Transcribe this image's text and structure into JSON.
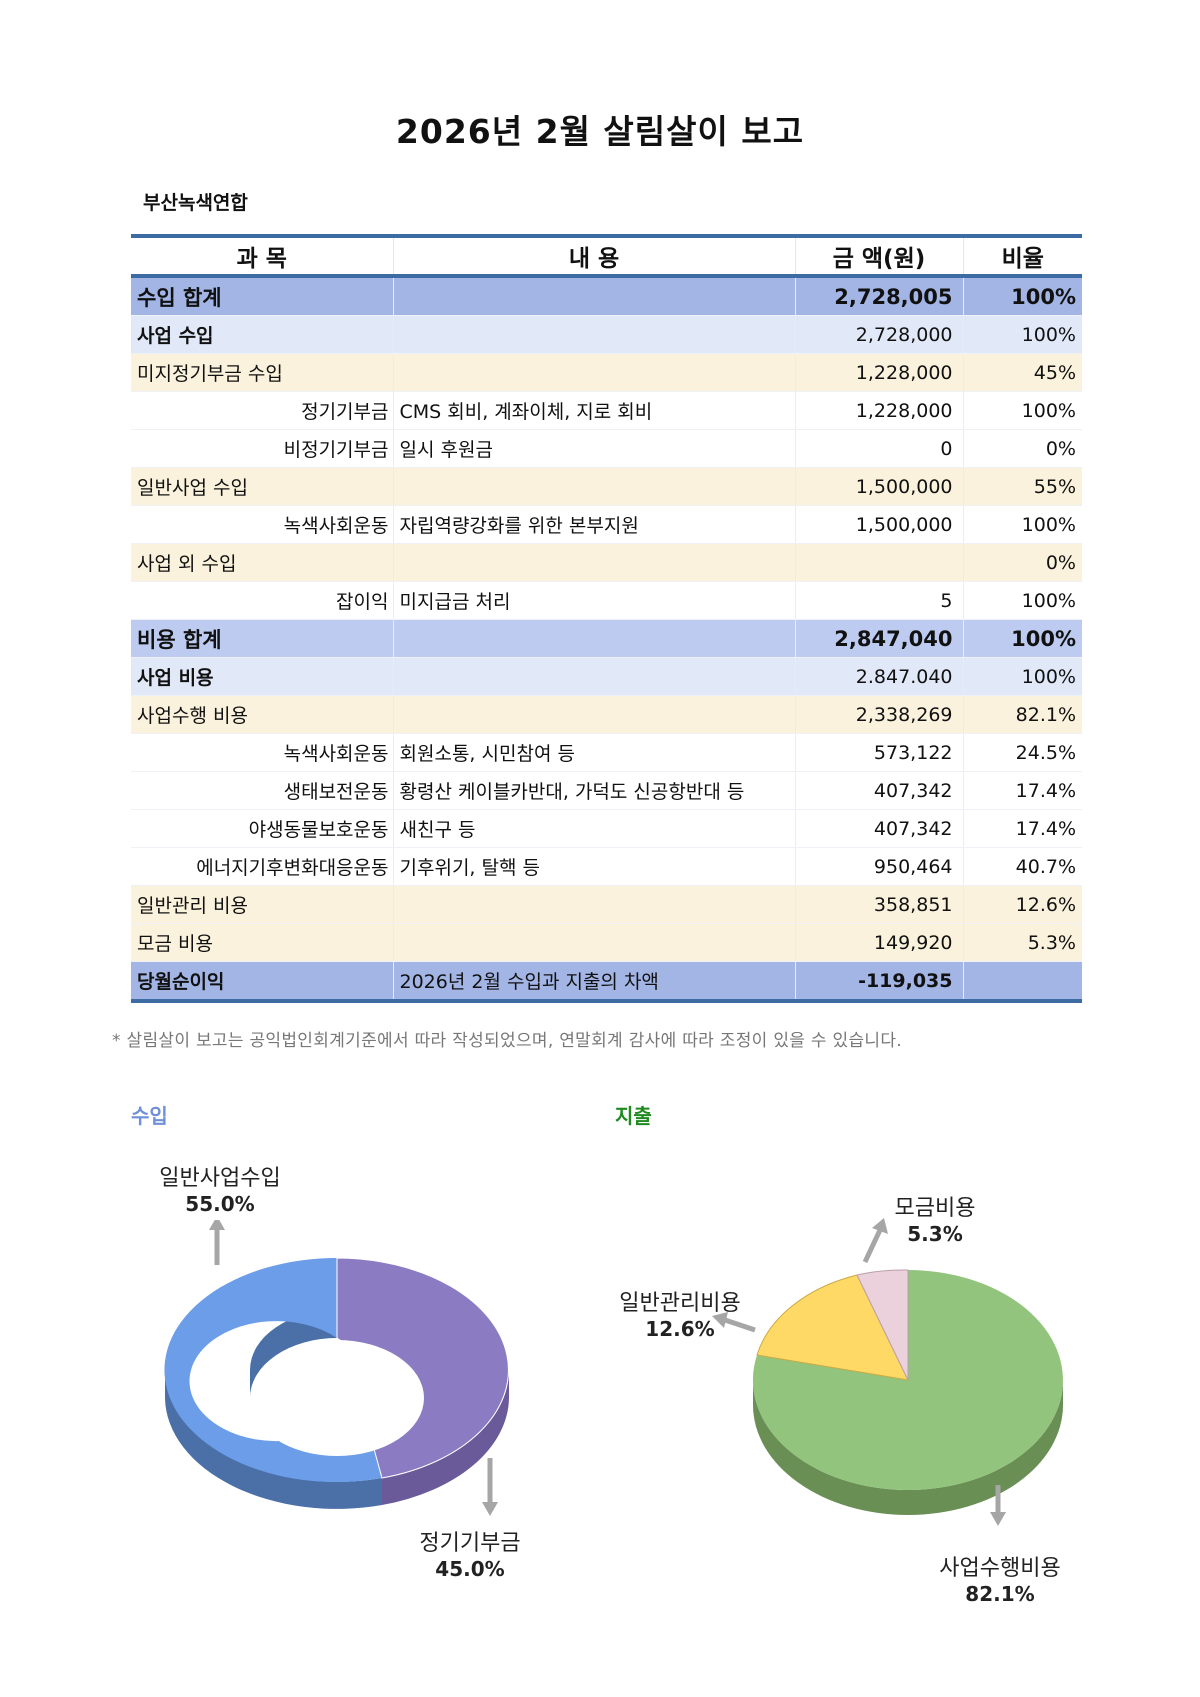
{
  "title": "2026년 2월 살림살이 보고",
  "organization": "부산녹색연합",
  "table": {
    "headers": [
      "과 목",
      "내 용",
      "금 액(원)",
      "비율"
    ],
    "rows": [
      {
        "type": "total",
        "subject": "수입 합계",
        "content": "",
        "amount": "2,728,005",
        "ratio": "100%"
      },
      {
        "type": "sub",
        "subject": "사업 수입",
        "content": "",
        "amount": "2,728,000",
        "ratio": "100%"
      },
      {
        "type": "cat",
        "subject": "미지정기부금 수입",
        "content": "",
        "amount": "1,228,000",
        "ratio": "45%"
      },
      {
        "type": "item",
        "subject": "정기기부금",
        "content": "CMS 회비, 계좌이체, 지로 회비",
        "amount": "1,228,000",
        "ratio": "100%"
      },
      {
        "type": "item",
        "subject": "비정기기부금",
        "content": "일시 후원금",
        "amount": "0",
        "ratio": "0%"
      },
      {
        "type": "cat",
        "subject": "일반사업 수입",
        "content": "",
        "amount": "1,500,000",
        "ratio": "55%"
      },
      {
        "type": "item",
        "subject": "녹색사회운동",
        "content": "자립역량강화를 위한 본부지원",
        "amount": "1,500,000",
        "ratio": "100%"
      },
      {
        "type": "cat",
        "subject": "사업 외 수입",
        "content": "",
        "amount": "",
        "ratio": "0%"
      },
      {
        "type": "item",
        "subject": "잡이익",
        "content": "미지급금 처리",
        "amount": "5",
        "ratio": "100%"
      },
      {
        "type": "total2",
        "subject": "비용 합계",
        "content": "",
        "amount": "2,847,040",
        "ratio": "100%"
      },
      {
        "type": "sub",
        "subject": "사업 비용",
        "content": "",
        "amount": "2.847.040",
        "ratio": "100%"
      },
      {
        "type": "cat",
        "subject": "사업수행 비용",
        "content": "",
        "amount": "2,338,269",
        "ratio": "82.1%"
      },
      {
        "type": "item",
        "subject": "녹색사회운동",
        "content": "회원소통, 시민참여 등",
        "amount": "573,122",
        "ratio": "24.5%"
      },
      {
        "type": "item",
        "subject": "생태보전운동",
        "content": "황령산 케이블카반대, 가덕도 신공항반대 등",
        "amount": "407,342",
        "ratio": "17.4%"
      },
      {
        "type": "item",
        "subject": "야생동물보호운동",
        "content": "새친구 등",
        "amount": "407,342",
        "ratio": "17.4%"
      },
      {
        "type": "item",
        "subject": "에너지기후변화대응운동",
        "content": "기후위기, 탈핵 등",
        "amount": "950,464",
        "ratio": "40.7%"
      },
      {
        "type": "cat",
        "subject": "일반관리 비용",
        "content": "",
        "amount": "358,851",
        "ratio": "12.6%"
      },
      {
        "type": "cat",
        "subject": "모금 비용",
        "content": "",
        "amount": "149,920",
        "ratio": "5.3%"
      },
      {
        "type": "net",
        "subject": "당월순이익",
        "content": "2026년 2월 수입과 지출의 차액",
        "amount": "-119,035",
        "ratio": ""
      }
    ]
  },
  "note": "* 살림살이 보고는 공익법인회계기준에서 따라 작성되었으며, 연말회계 감사에 따라 조정이 있을 수 있습니다.",
  "charts": {
    "income_title": "수입",
    "expense_title": "지출",
    "income_labels": [
      {
        "name": "일반사업수입",
        "pct": "55.0%"
      },
      {
        "name": "정기기부금",
        "pct": "45.0%"
      }
    ],
    "expense_labels": [
      {
        "name": "모금비용",
        "pct": "5.3%"
      },
      {
        "name": "일반관리비용",
        "pct": "12.6%"
      },
      {
        "name": "사업수행비용",
        "pct": "82.1%"
      }
    ]
  },
  "colors": {
    "header_border": "#3d6ba3",
    "total_row": "#a2b5e5",
    "sub_row": "#e1e8f7",
    "category_row": "#faf2dc",
    "income_title": "#6f8fd8",
    "expense_title": "#1f8a1f",
    "donut_blue": "#6c9de8",
    "donut_purple": "#8b7bc2",
    "pie_green": "#93c47d",
    "pie_yellow": "#ffd966",
    "pie_pink": "#ead1dc"
  },
  "chart_data": [
    {
      "type": "pie",
      "title": "수입",
      "style": "3d-donut",
      "categories": [
        "일반사업수입",
        "정기기부금"
      ],
      "values": [
        55.0,
        45.0
      ],
      "unit": "%"
    },
    {
      "type": "pie",
      "title": "지출",
      "style": "3d-pie",
      "categories": [
        "사업수행비용",
        "일반관리비용",
        "모금비용"
      ],
      "values": [
        82.1,
        12.6,
        5.3
      ],
      "unit": "%"
    }
  ]
}
